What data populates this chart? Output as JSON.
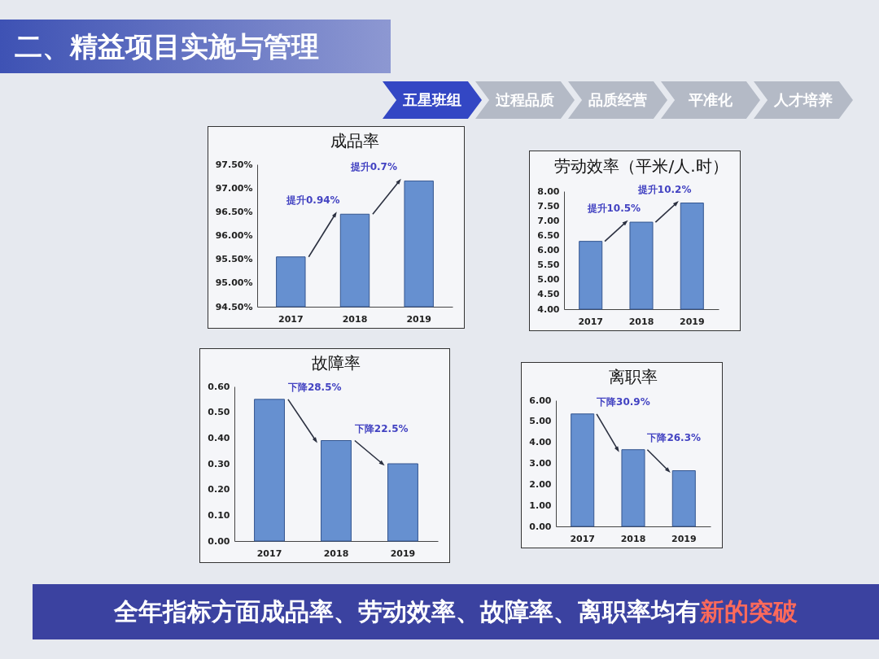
{
  "chart_data": [
    {
      "type": "other",
      "title": "二、精益项目实施与管理",
      "annotations": [
        "五星班组",
        "过程品质",
        "品质经营",
        "平准化",
        "人才培养"
      ]
    },
    {
      "type": "bar",
      "title": "成品率",
      "categories": [
        "2017",
        "2018",
        "2019"
      ],
      "values": [
        95.55,
        96.45,
        97.15
      ],
      "color": "#6690d0",
      "ylim": [
        94.5,
        97.5
      ],
      "yticks": [
        {
          "value": 94.5,
          "label": "94.50%"
        },
        {
          "value": 95,
          "label": "95.00%"
        },
        {
          "value": 95.5,
          "label": "95.50%"
        },
        {
          "value": 96,
          "label": "96.00%"
        },
        {
          "value": 96.5,
          "label": "96.50%"
        },
        {
          "value": 97,
          "label": "97.00%"
        },
        {
          "value": 97.5,
          "label": "97.50%"
        }
      ],
      "annotations": [
        {
          "text": "提升0.94%",
          "x": "2018",
          "y": 96.45
        },
        {
          "text": "提升0.7%",
          "x": "2019",
          "y": 97.15
        }
      ]
    },
    {
      "type": "bar",
      "title": "劳动效率（平米/人.时）",
      "categories": [
        "2017",
        "2018",
        "2019"
      ],
      "values": [
        6.3,
        6.95,
        7.6
      ],
      "color": "#6690d0",
      "ylim": [
        4,
        8
      ],
      "yticks": [
        {
          "value": 4,
          "label": "4.00"
        },
        {
          "value": 4.5,
          "label": "4.50"
        },
        {
          "value": 5,
          "label": "5.00"
        },
        {
          "value": 5.5,
          "label": "5.50"
        },
        {
          "value": 6,
          "label": "6.00"
        },
        {
          "value": 6.5,
          "label": "6.50"
        },
        {
          "value": 7,
          "label": "7.00"
        },
        {
          "value": 7.5,
          "label": "7.50"
        },
        {
          "value": 8,
          "label": "8.00"
        }
      ],
      "annotations": [
        {
          "text": "提升10.5%",
          "x": "2018",
          "y": 6.95
        },
        {
          "text": "提升10.2%",
          "x": "2019",
          "y": 7.6
        }
      ]
    },
    {
      "type": "bar",
      "title": "故障率",
      "categories": [
        "2017",
        "2018",
        "2019"
      ],
      "values": [
        0.55,
        0.39,
        0.3
      ],
      "color": "#6690d0",
      "ylim": [
        0,
        0.6
      ],
      "yticks": [
        {
          "value": 0,
          "label": "0.00"
        },
        {
          "value": 0.1,
          "label": "0.10"
        },
        {
          "value": 0.2,
          "label": "0.20"
        },
        {
          "value": 0.3,
          "label": "0.30"
        },
        {
          "value": 0.4,
          "label": "0.40"
        },
        {
          "value": 0.5,
          "label": "0.50"
        },
        {
          "value": 0.6,
          "label": "0.60"
        }
      ],
      "annotations": [
        "下降28.5%",
        "下降22.5%"
      ]
    },
    {
      "type": "bar",
      "title": "离职率",
      "categories": [
        "2017",
        "2018",
        "2019"
      ],
      "values": [
        5.35,
        3.65,
        2.65
      ],
      "color": "#6690d0",
      "ylim": [
        0,
        6
      ],
      "yticks": [
        {
          "value": 0,
          "label": "0.00"
        },
        {
          "value": 1,
          "label": "1.00"
        },
        {
          "value": 2,
          "label": "2.00"
        },
        {
          "value": 3,
          "label": "3.00"
        },
        {
          "value": 4,
          "label": "4.00"
        },
        {
          "value": 5,
          "label": "5.00"
        },
        {
          "value": 6,
          "label": "6.00"
        }
      ],
      "annotations": [
        "下降30.9%",
        "下降26.3%"
      ]
    },
    {
      "type": "other",
      "annotations": [
        "全年指标方面成品率、劳动效率、故障率、离职率均有",
        "新的突破"
      ]
    }
  ]
}
